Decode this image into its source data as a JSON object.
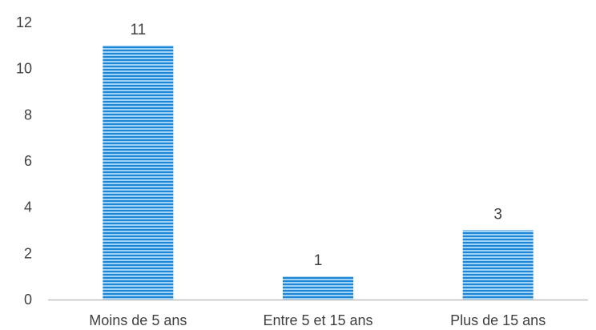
{
  "chart_data": {
    "type": "bar",
    "categories": [
      "Moins de 5 ans",
      "Entre 5 et 15 ans",
      "Plus de 15 ans"
    ],
    "values": [
      11,
      1,
      3
    ],
    "data_labels": [
      "11",
      "1",
      "3"
    ],
    "title": "",
    "xlabel": "",
    "ylabel": "",
    "ylim": [
      0,
      12
    ],
    "yticks": [
      0,
      2,
      4,
      6,
      8,
      10,
      12
    ],
    "grid": false,
    "legend": "none",
    "bar_fill": "striped-horizontal",
    "colors": {
      "bar_light": "#9fd3f5",
      "bar_dark": "#1f86d6",
      "axis": "#bfbfbf",
      "text": "#404040"
    }
  }
}
